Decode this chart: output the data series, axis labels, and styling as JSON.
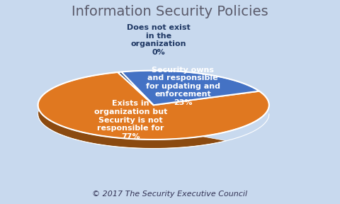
{
  "title": "Information Security Policies",
  "values": [
    77,
    23,
    0.5
  ],
  "pie_colors": [
    "#E07820",
    "#4472C4",
    "#1F3864"
  ],
  "shadow_colors": [
    "#8B4A10",
    "#2a4a7a",
    "#0d1f40"
  ],
  "labels_inside": [
    "Exists in\norganization but\nSecurity is not\nresponsible for\n77%",
    "Security owns\nand responsible\nfor updating and\nenforcement\n23%",
    ""
  ],
  "label_outside": "Does not exist\nin the\norganization\n0%",
  "label_outside_color": "#1F3864",
  "bg_color": "#C8D9EE",
  "title_color": "#5A5A6A",
  "title_fontsize": 14,
  "inner_label_fontsize": 8,
  "outer_label_fontsize": 8,
  "footer": "© 2017 The Security Executive Council",
  "footer_fontsize": 8,
  "footer_color": "#333355",
  "startangle": 108,
  "shadow_depth": 18,
  "yscale": 0.55
}
